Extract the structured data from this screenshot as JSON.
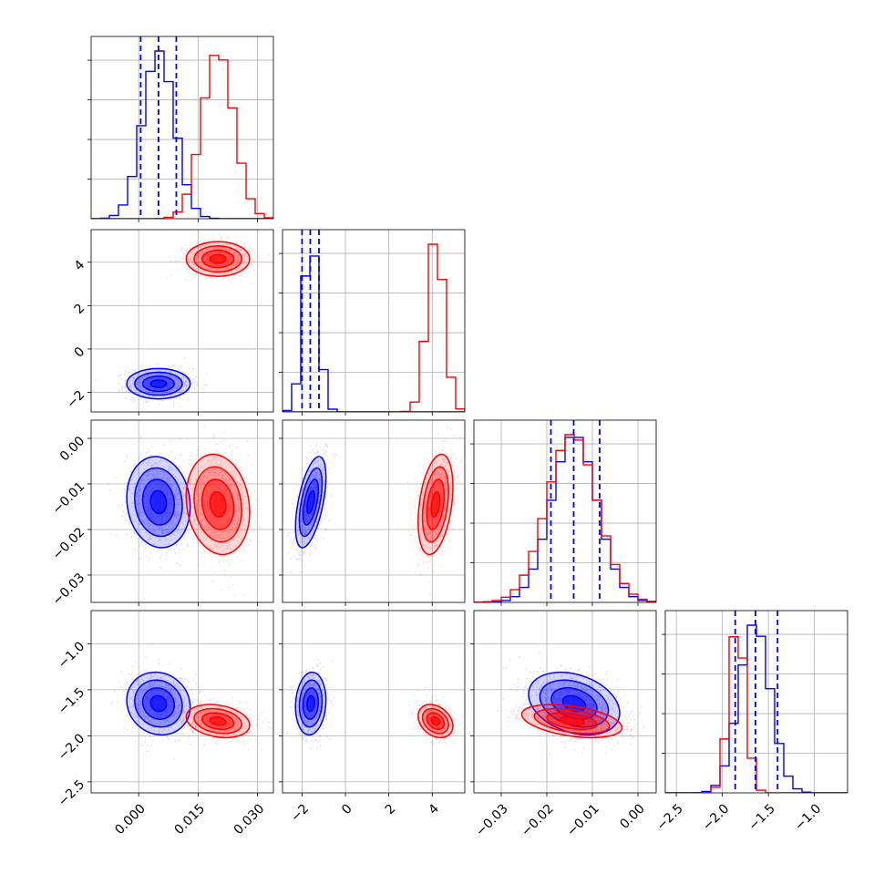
{
  "chart_data": {
    "type": "corner",
    "grid": true,
    "colors": {
      "run_a": "#0000ff",
      "run_b": "#ff0000",
      "quantile_lines": "#0000ff"
    },
    "parameters": [
      {
        "ticks": [
          0.0,
          0.015,
          0.03
        ],
        "tick_labels": [
          "0.000",
          "0.015",
          "0.030"
        ],
        "range": [
          -0.012,
          0.034
        ]
      },
      {
        "ticks": [
          -2,
          0,
          2,
          4
        ],
        "tick_labels": [
          "−2",
          "0",
          "2",
          "4"
        ],
        "range": [
          -2.9,
          5.5
        ]
      },
      {
        "ticks": [
          -0.03,
          -0.02,
          -0.01,
          0.0
        ],
        "tick_labels": [
          "−0.03",
          "−0.02",
          "−0.01",
          "0.00"
        ],
        "range": [
          -0.036,
          0.004
        ]
      },
      {
        "ticks": [
          -2.5,
          -2.0,
          -1.5,
          -1.0
        ],
        "tick_labels": [
          "−2.5",
          "−2.0",
          "−1.5",
          "−1.0"
        ],
        "range": [
          -2.62,
          -0.64
        ]
      }
    ],
    "series": [
      {
        "color": "#0000ff",
        "mean": [
          0.005,
          -1.6,
          -0.014,
          -1.65
        ],
        "std": [
          0.004,
          0.35,
          0.005,
          0.17
        ],
        "corr": [
          [
            0,
            2,
            -0.1
          ],
          [
            1,
            2,
            0.55
          ],
          [
            0,
            3,
            -0.1
          ],
          [
            1,
            3,
            0.1
          ],
          [
            2,
            3,
            -0.3
          ]
        ]
      },
      {
        "color": "#ff0000",
        "mean": [
          0.02,
          4.15,
          -0.0145,
          -1.84
        ],
        "std": [
          0.004,
          0.4,
          0.0055,
          0.09
        ],
        "corr": [
          [
            0,
            2,
            -0.15
          ],
          [
            1,
            2,
            0.35
          ],
          [
            0,
            3,
            -0.25
          ],
          [
            1,
            3,
            -0.3
          ],
          [
            2,
            3,
            -0.4
          ]
        ]
      }
    ],
    "quantiles_blue": [
      [
        0.0005,
        0.005,
        0.0095
      ],
      [
        -2.0,
        -1.62,
        -1.22
      ],
      [
        -0.0191,
        -0.0141,
        -0.0084
      ],
      [
        -1.86,
        -1.64,
        -1.4
      ]
    ]
  }
}
